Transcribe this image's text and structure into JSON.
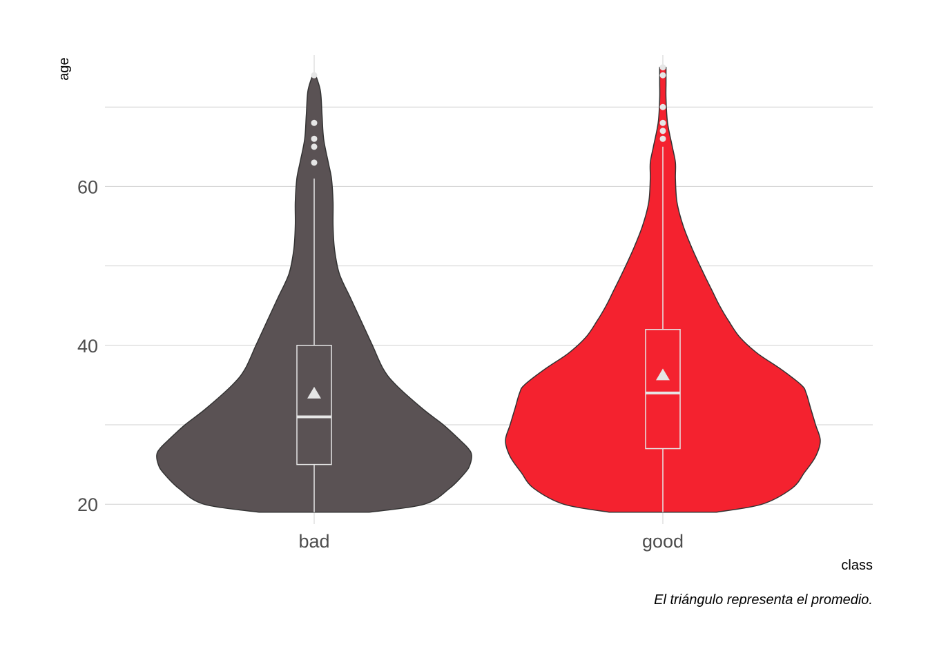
{
  "chart_data": {
    "type": "violin",
    "xlabel": "class",
    "ylabel": "age",
    "caption": "El triángulo representa el promedio.",
    "categories": [
      "bad",
      "good"
    ],
    "colors": {
      "bad": "#5a5254",
      "good": "#f4222f",
      "outline": "#333333",
      "box": "#e6e6e6",
      "grid": "#d0d0d0"
    },
    "ylim": [
      17.5,
      80
    ],
    "yticks": [
      20,
      40,
      60
    ],
    "y_minor_gridlines": [
      30,
      50,
      70
    ],
    "grid": true,
    "series": [
      {
        "category": "bad",
        "box": {
          "min": 19,
          "q1": 25,
          "median": 31,
          "q3": 40,
          "whisker_high": 61,
          "mean": 34
        },
        "outliers": [
          63,
          65,
          66,
          68,
          74
        ],
        "density_halfwidth": [
          [
            19,
            0.35
          ],
          [
            20,
            0.7
          ],
          [
            22,
            0.86
          ],
          [
            24,
            0.96
          ],
          [
            25,
            0.99
          ],
          [
            26.2,
            1.0
          ],
          [
            27,
            0.98
          ],
          [
            28,
            0.93
          ],
          [
            30,
            0.82
          ],
          [
            32,
            0.69
          ],
          [
            35,
            0.52
          ],
          [
            37,
            0.44
          ],
          [
            40,
            0.37
          ],
          [
            43,
            0.3
          ],
          [
            46,
            0.23
          ],
          [
            49,
            0.16
          ],
          [
            52,
            0.13
          ],
          [
            55,
            0.12
          ],
          [
            58,
            0.12
          ],
          [
            61,
            0.11
          ],
          [
            63,
            0.09
          ],
          [
            66,
            0.06
          ],
          [
            69,
            0.05
          ],
          [
            72,
            0.04
          ],
          [
            74,
            0.01
          ]
        ]
      },
      {
        "category": "good",
        "box": {
          "min": 19,
          "q1": 27,
          "median": 34,
          "q3": 42,
          "whisker_high": 65,
          "mean": 36.3
        },
        "outliers": [
          66,
          67,
          68,
          70,
          74,
          75
        ],
        "density_halfwidth": [
          [
            19,
            0.34
          ],
          [
            20,
            0.63
          ],
          [
            22,
            0.82
          ],
          [
            24,
            0.9
          ],
          [
            26,
            0.97
          ],
          [
            28,
            1.0
          ],
          [
            30,
            0.97
          ],
          [
            32,
            0.94
          ],
          [
            34,
            0.91
          ],
          [
            35,
            0.88
          ],
          [
            37,
            0.75
          ],
          [
            39,
            0.6
          ],
          [
            41,
            0.49
          ],
          [
            43,
            0.42
          ],
          [
            45,
            0.36
          ],
          [
            47,
            0.31
          ],
          [
            49,
            0.26
          ],
          [
            52,
            0.19
          ],
          [
            55,
            0.13
          ],
          [
            58,
            0.09
          ],
          [
            61,
            0.08
          ],
          [
            63,
            0.08
          ],
          [
            65,
            0.06
          ],
          [
            68,
            0.03
          ],
          [
            71,
            0.02
          ],
          [
            73,
            0.02
          ],
          [
            75,
            0.02
          ]
        ]
      }
    ]
  }
}
